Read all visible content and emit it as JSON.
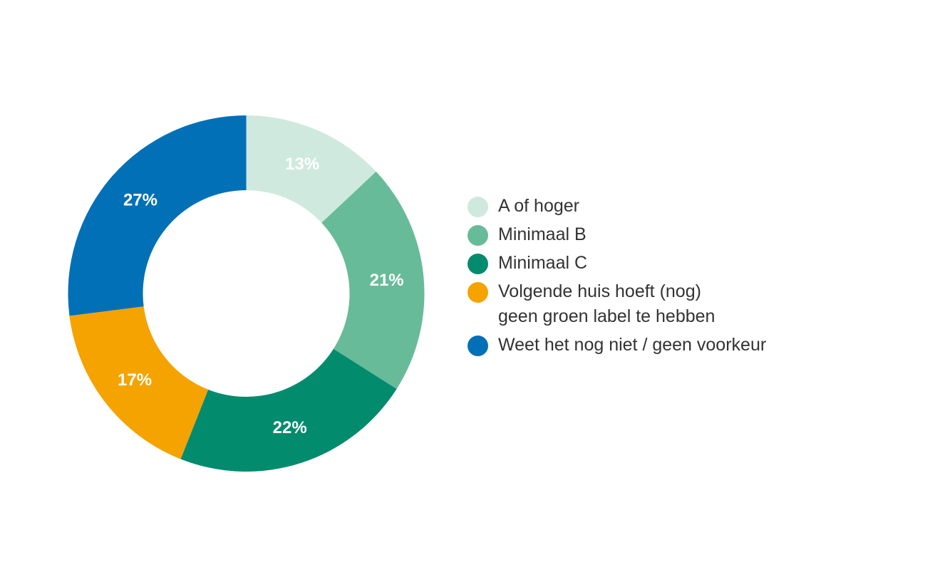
{
  "chart_data": {
    "type": "pie",
    "donut": true,
    "categories": [
      "A of hoger",
      "Minimaal B",
      "Minimaal C",
      "Volgende huis hoeft (nog)\ngeen groen label te hebben",
      "Weet het nog niet / geen voorkeur"
    ],
    "values": [
      13,
      21,
      22,
      17,
      27
    ],
    "value_labels": [
      "13%",
      "21%",
      "22%",
      "17%",
      "27%"
    ],
    "colors": [
      "#cfe9df",
      "#67bb99",
      "#038b6e",
      "#f5a300",
      "#0170b6"
    ],
    "legend_position": "right",
    "start": "top",
    "direction": "clockwise"
  }
}
